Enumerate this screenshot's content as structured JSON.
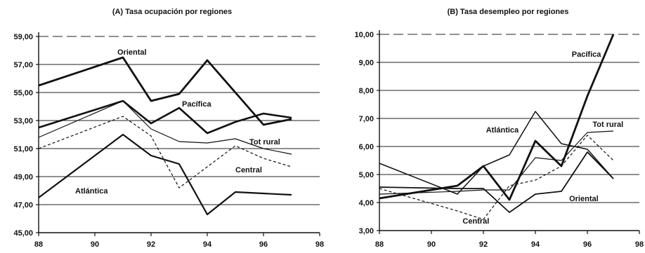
{
  "chart_data": [
    {
      "type": "line",
      "title": "(A) Tasa ocupación por regiones",
      "xlim": [
        88,
        98
      ],
      "ylim": [
        45,
        59
      ],
      "x_ticks": [
        88,
        90,
        92,
        94,
        96,
        98
      ],
      "y_ticks": [
        45,
        47,
        49,
        51,
        53,
        55,
        57,
        59
      ],
      "x_tick_labels": [
        "88",
        "90",
        "92",
        "94",
        "96",
        "98"
      ],
      "y_tick_labels": [
        "45,00",
        "47,00",
        "49,00",
        "51,00",
        "53,00",
        "55,00",
        "57,00",
        "59,00"
      ],
      "x": [
        88,
        91,
        92,
        93,
        94,
        95,
        96,
        97
      ],
      "series": [
        {
          "name": "Oriental",
          "values": [
            55.5,
            57.5,
            54.4,
            54.9,
            57.3,
            55.0,
            52.7,
            53.1
          ],
          "width": 2.8,
          "dash": ""
        },
        {
          "name": "Pacífica",
          "values": [
            52.5,
            54.4,
            52.8,
            53.9,
            52.1,
            52.9,
            53.5,
            53.2
          ],
          "width": 2.6,
          "dash": ""
        },
        {
          "name": "Tot rural",
          "values": [
            51.8,
            54.4,
            52.4,
            51.5,
            51.4,
            51.7,
            51.0,
            50.6
          ],
          "width": 1.2,
          "dash": ""
        },
        {
          "name": "Central",
          "values": [
            51.0,
            53.3,
            51.9,
            48.2,
            49.7,
            51.2,
            50.3,
            49.7
          ],
          "width": 1.2,
          "dash": "4,3"
        },
        {
          "name": "Atlántica",
          "values": [
            47.5,
            52.0,
            50.5,
            49.9,
            46.3,
            47.9,
            47.8,
            47.7
          ],
          "width": 2.2,
          "dash": ""
        }
      ],
      "annotations": [
        {
          "text": "Oriental",
          "x": 90.8,
          "y": 57.7
        },
        {
          "text": "Pacífica",
          "x": 93.1,
          "y": 54.0
        },
        {
          "text": "Tot rural",
          "x": 95.5,
          "y": 51.3
        },
        {
          "text": "Central",
          "x": 95.0,
          "y": 49.3
        },
        {
          "text": "Atlántica",
          "x": 89.3,
          "y": 47.8
        }
      ],
      "grid": "horizontal"
    },
    {
      "type": "line",
      "title": "(B) Tasa desempleo por regiones",
      "xlim": [
        88,
        98
      ],
      "ylim": [
        3,
        10
      ],
      "x_ticks": [
        88,
        90,
        92,
        94,
        96,
        98
      ],
      "y_ticks": [
        3,
        4,
        5,
        6,
        7,
        8,
        9,
        10
      ],
      "x_tick_labels": [
        "88",
        "90",
        "92",
        "94",
        "96",
        "98"
      ],
      "y_tick_labels": [
        "3,00",
        "4,00",
        "5,00",
        "6,00",
        "7,00",
        "8,00",
        "9,00",
        "10,00"
      ],
      "x": [
        88,
        91,
        92,
        93,
        94,
        95,
        96,
        97
      ],
      "series": [
        {
          "name": "Pacífica",
          "values": [
            4.15,
            4.6,
            5.3,
            4.1,
            6.2,
            5.3,
            7.8,
            10.0
          ],
          "width": 2.8,
          "dash": ""
        },
        {
          "name": "Atlántica",
          "values": [
            5.4,
            4.3,
            5.3,
            5.7,
            7.25,
            6.1,
            5.9,
            4.85
          ],
          "width": 1.5,
          "dash": ""
        },
        {
          "name": "Tot rural",
          "values": [
            4.3,
            4.4,
            4.45,
            4.45,
            5.6,
            5.5,
            6.5,
            6.55
          ],
          "width": 1.2,
          "dash": ""
        },
        {
          "name": "Oriental",
          "values": [
            4.55,
            4.5,
            4.5,
            3.65,
            4.3,
            4.4,
            5.8,
            4.85
          ],
          "width": 1.8,
          "dash": ""
        },
        {
          "name": "Central",
          "values": [
            4.5,
            3.7,
            3.4,
            4.6,
            4.8,
            5.3,
            6.4,
            5.5
          ],
          "width": 1.2,
          "dash": "4,3"
        }
      ],
      "annotations": [
        {
          "text": "Pacífica",
          "x": 95.4,
          "y": 9.2
        },
        {
          "text": "Atlántica",
          "x": 92.1,
          "y": 6.5
        },
        {
          "text": "Tot rural",
          "x": 96.2,
          "y": 6.7
        },
        {
          "text": "Oriental",
          "x": 95.3,
          "y": 4.05
        },
        {
          "text": "Central",
          "x": 91.2,
          "y": 3.25
        }
      ],
      "grid": "horizontal"
    }
  ]
}
